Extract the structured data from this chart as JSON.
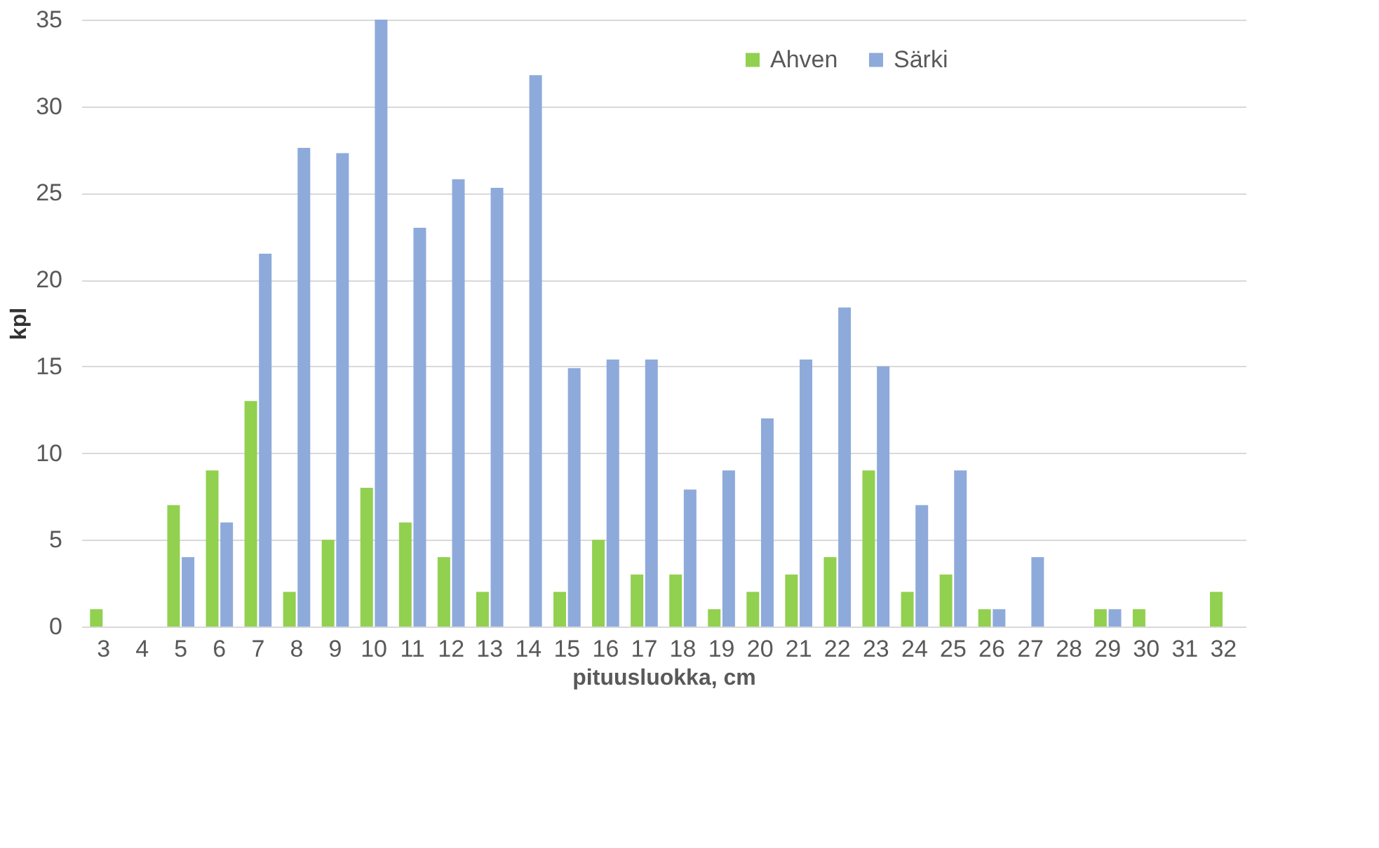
{
  "chart_data": {
    "type": "bar",
    "xlabel": "pituusluokka, cm",
    "ylabel": "kpl",
    "categories": [
      "3",
      "4",
      "5",
      "6",
      "7",
      "8",
      "9",
      "10",
      "11",
      "12",
      "13",
      "14",
      "15",
      "16",
      "17",
      "18",
      "19",
      "20",
      "21",
      "22",
      "23",
      "24",
      "25",
      "26",
      "27",
      "28",
      "29",
      "30",
      "31",
      "32"
    ],
    "series": [
      {
        "name": "Ahven",
        "color": "#92d050",
        "values": [
          1,
          0,
          7,
          9,
          13,
          2,
          5,
          8,
          6,
          4,
          2,
          0,
          2,
          5,
          3,
          3,
          1,
          2,
          3,
          4,
          9,
          2,
          3,
          1,
          0,
          0,
          1,
          1,
          0,
          2
        ]
      },
      {
        "name": "Särki",
        "color": "#8eaadb",
        "values": [
          0,
          0,
          4,
          6,
          21.5,
          27.6,
          27.3,
          35,
          23,
          25.8,
          25.3,
          31.8,
          14.9,
          15.4,
          15.4,
          7.9,
          9,
          12,
          15.4,
          18.4,
          15,
          7,
          9,
          1,
          4,
          0,
          1,
          0,
          0,
          0
        ]
      }
    ],
    "ylim": [
      0,
      35
    ],
    "yticks": [
      0,
      5,
      10,
      15,
      20,
      25,
      30,
      35
    ],
    "grid": "y",
    "legend": "top right"
  }
}
